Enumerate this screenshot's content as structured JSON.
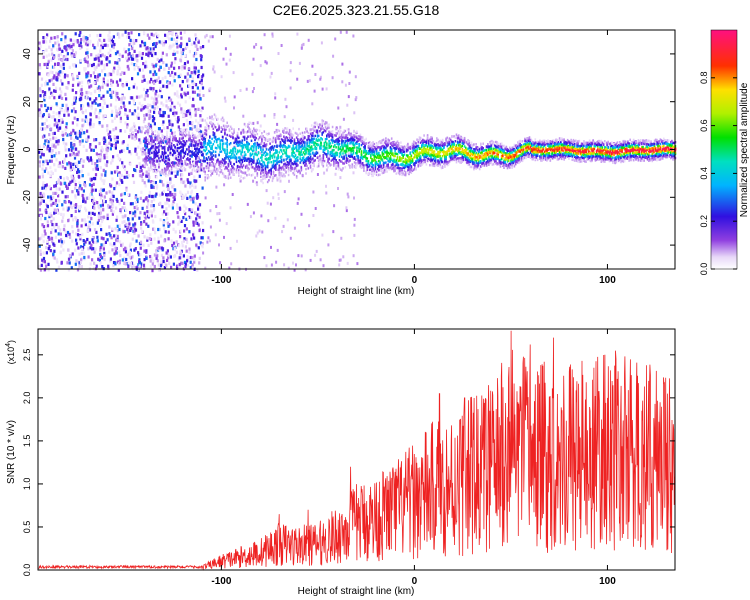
{
  "title": "C2E6.2025.323.21.55.G18",
  "colors": {
    "snr_line": "#ee2222",
    "frame": "#000000"
  },
  "chart_data": [
    {
      "type": "heatmap",
      "xlabel": "Height of straight line (km)",
      "ylabel": "Frequency (Hz)",
      "xlim": [
        -195,
        135
      ],
      "ylim": [
        -50,
        50
      ],
      "xticks": [
        -100,
        0,
        100
      ],
      "xtick_labels": [
        "-100",
        "0",
        "100"
      ],
      "yticks": [
        -40,
        -20,
        0,
        20,
        40
      ],
      "ytick_labels": [
        "-40",
        "-20",
        "0",
        "20",
        "40"
      ],
      "colorbar": {
        "label": "Normalized spectral amplitude",
        "range": [
          0,
          1
        ],
        "ticks": [
          0.0,
          0.2,
          0.4,
          0.6,
          0.8
        ],
        "tick_labels": [
          "0.0",
          "0.2",
          "0.4",
          "0.6",
          "0.8"
        ],
        "colormap": "rainbow (white–purple–blue–cyan–green–yellow–red–magenta)"
      },
      "noise_region_end_km": -110,
      "signal_band": [
        {
          "x": -110,
          "center": 0,
          "halfwidth": 6,
          "amp": 0.35
        },
        {
          "x": -80,
          "center": -1,
          "halfwidth": 5,
          "amp": 0.4
        },
        {
          "x": -50,
          "center": 1,
          "halfwidth": 4.5,
          "amp": 0.45
        },
        {
          "x": -30,
          "center": -1,
          "halfwidth": 3.5,
          "amp": 0.5
        },
        {
          "x": 0,
          "center": -2,
          "halfwidth": 3,
          "amp": 0.65
        },
        {
          "x": 30,
          "center": -1,
          "halfwidth": 2.5,
          "amp": 0.75
        },
        {
          "x": 60,
          "center": 0,
          "halfwidth": 2,
          "amp": 0.85
        },
        {
          "x": 100,
          "center": 0,
          "halfwidth": 2,
          "amp": 0.9
        },
        {
          "x": 135,
          "center": 0,
          "halfwidth": 2,
          "amp": 0.92
        }
      ]
    },
    {
      "type": "line",
      "xlabel": "Height of straight line (km)",
      "ylabel": "SNR (10 * v/v)",
      "scale_label": "(x10",
      "scale_exp": "4",
      "scale_close": ")",
      "xlim": [
        -195,
        135
      ],
      "ylim": [
        0,
        2.8
      ],
      "xticks": [
        -100,
        0,
        100
      ],
      "xtick_labels": [
        "-100",
        "0",
        "100"
      ],
      "yticks": [
        0.0,
        0.5,
        1.0,
        1.5,
        2.0,
        2.5
      ],
      "ytick_labels": [
        "0.0",
        "0.5",
        "1.0",
        "1.5",
        "2.0",
        "2.5"
      ],
      "series": [
        {
          "x": [
            -195,
            -150,
            -110,
            -100,
            -90,
            -80,
            -70,
            -60,
            -50,
            -40,
            -30,
            -20,
            -10,
            0,
            10,
            20,
            30,
            40,
            50,
            60,
            70,
            80,
            90,
            100,
            110,
            120,
            135
          ],
          "y": [
            0.02,
            0.03,
            0.03,
            0.1,
            0.15,
            0.2,
            0.3,
            0.28,
            0.3,
            0.4,
            0.55,
            0.6,
            0.7,
            0.8,
            0.95,
            1.0,
            1.1,
            1.2,
            1.4,
            1.35,
            1.3,
            1.35,
            1.3,
            1.4,
            1.35,
            1.3,
            1.3
          ],
          "peaks": [
            {
              "x": 50,
              "y": 2.78
            },
            {
              "x": 60,
              "y": 2.62
            },
            {
              "x": 72,
              "y": 2.7
            },
            {
              "x": 45,
              "y": 2.25
            },
            {
              "x": 13,
              "y": 2.05
            },
            {
              "x": 26,
              "y": 2.0
            },
            {
              "x": 84,
              "y": 1.95
            },
            {
              "x": 100,
              "y": 2.0
            },
            {
              "x": -33,
              "y": 1.2
            },
            {
              "x": -70,
              "y": 0.65
            },
            {
              "x": -55,
              "y": 0.7
            },
            {
              "x": 110,
              "y": 1.8
            }
          ]
        }
      ]
    }
  ]
}
